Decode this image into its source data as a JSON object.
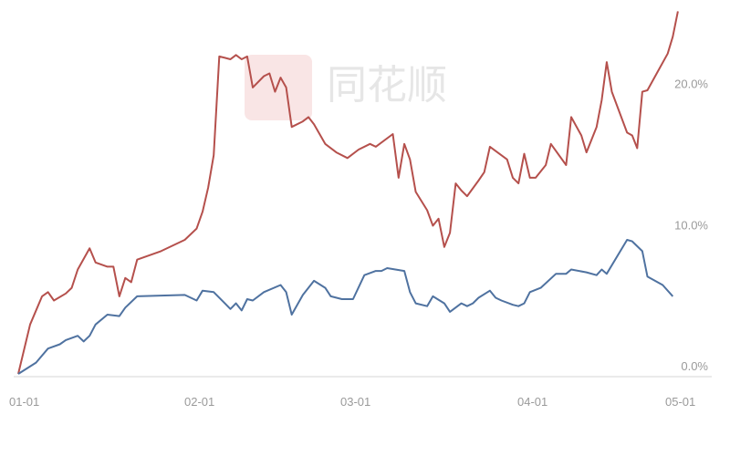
{
  "watermark": {
    "text": "同花顺",
    "logo_color": "#f6d6d6"
  },
  "chart_data": {
    "type": "line",
    "title": "",
    "xlabel": "",
    "ylabel": "",
    "x_ticks": [
      "01-01",
      "02-01",
      "03-01",
      "04-01",
      "05-01"
    ],
    "y_ticks": [
      "0.0%",
      "10.0%",
      "20.0%"
    ],
    "xlim": [
      "01-01",
      "05-01"
    ],
    "ylim": [
      0,
      26.5
    ],
    "grid": false,
    "legend": "none",
    "series": [
      {
        "color": "#b5504c",
        "points": [
          [
            "01-01",
            0.0
          ],
          [
            "01-03",
            3.5
          ],
          [
            "01-05",
            5.5
          ],
          [
            "01-06",
            5.8
          ],
          [
            "01-07",
            5.2
          ],
          [
            "01-09",
            5.7
          ],
          [
            "01-10",
            6.1
          ],
          [
            "01-11",
            7.4
          ],
          [
            "01-13",
            8.9
          ],
          [
            "01-14",
            7.9
          ],
          [
            "01-16",
            7.6
          ],
          [
            "01-17",
            7.6
          ],
          [
            "01-18",
            5.5
          ],
          [
            "01-19",
            6.8
          ],
          [
            "01-20",
            6.5
          ],
          [
            "01-21",
            8.1
          ],
          [
            "01-25",
            8.7
          ],
          [
            "01-29",
            9.5
          ],
          [
            "01-31",
            10.3
          ],
          [
            "02-01",
            11.5
          ],
          [
            "02-02",
            13.2
          ],
          [
            "02-03",
            15.5
          ],
          [
            "02-04",
            22.5
          ],
          [
            "02-05",
            22.4
          ],
          [
            "02-06",
            22.3
          ],
          [
            "02-07",
            22.6
          ],
          [
            "02-08",
            22.3
          ],
          [
            "02-09",
            22.5
          ],
          [
            "02-10",
            20.3
          ],
          [
            "02-12",
            21.1
          ],
          [
            "02-13",
            21.3
          ],
          [
            "02-14",
            20.0
          ],
          [
            "02-15",
            21.0
          ],
          [
            "02-16",
            20.3
          ],
          [
            "02-17",
            17.5
          ],
          [
            "02-19",
            17.9
          ],
          [
            "02-20",
            18.2
          ],
          [
            "02-21",
            17.7
          ],
          [
            "02-23",
            16.3
          ],
          [
            "02-25",
            15.7
          ],
          [
            "02-27",
            15.3
          ],
          [
            "03-01",
            15.9
          ],
          [
            "03-03",
            16.3
          ],
          [
            "03-04",
            16.1
          ],
          [
            "03-07",
            17.0
          ],
          [
            "03-08",
            13.9
          ],
          [
            "03-09",
            16.3
          ],
          [
            "03-10",
            15.2
          ],
          [
            "03-11",
            12.9
          ],
          [
            "03-13",
            11.6
          ],
          [
            "03-14",
            10.5
          ],
          [
            "03-15",
            11.0
          ],
          [
            "03-16",
            9.0
          ],
          [
            "03-17",
            10.0
          ],
          [
            "03-18",
            13.5
          ],
          [
            "03-19",
            13.0
          ],
          [
            "03-20",
            12.6
          ],
          [
            "03-22",
            13.7
          ],
          [
            "03-23",
            14.3
          ],
          [
            "03-24",
            16.1
          ],
          [
            "03-27",
            15.2
          ],
          [
            "03-28",
            13.9
          ],
          [
            "03-29",
            13.5
          ],
          [
            "03-30",
            15.6
          ],
          [
            "03-31",
            13.9
          ],
          [
            "04-01",
            13.9
          ],
          [
            "04-03",
            14.8
          ],
          [
            "04-04",
            16.3
          ],
          [
            "04-07",
            14.8
          ],
          [
            "04-08",
            18.2
          ],
          [
            "04-10",
            16.9
          ],
          [
            "04-11",
            15.7
          ],
          [
            "04-13",
            17.5
          ],
          [
            "04-14",
            19.4
          ],
          [
            "04-15",
            22.1
          ],
          [
            "04-16",
            20.0
          ],
          [
            "04-19",
            17.1
          ],
          [
            "04-20",
            16.9
          ],
          [
            "04-21",
            16.0
          ],
          [
            "04-22",
            20.0
          ],
          [
            "04-23",
            20.1
          ],
          [
            "04-25",
            21.4
          ],
          [
            "04-27",
            22.7
          ],
          [
            "04-28",
            23.9
          ],
          [
            "04-29",
            25.7
          ]
        ]
      },
      {
        "color": "#4f72a0",
        "points": [
          [
            "01-01",
            0.0
          ],
          [
            "01-04",
            0.8
          ],
          [
            "01-06",
            1.8
          ],
          [
            "01-08",
            2.1
          ],
          [
            "01-09",
            2.4
          ],
          [
            "01-11",
            2.7
          ],
          [
            "01-12",
            2.3
          ],
          [
            "01-13",
            2.7
          ],
          [
            "01-14",
            3.5
          ],
          [
            "01-16",
            4.2
          ],
          [
            "01-18",
            4.1
          ],
          [
            "01-19",
            4.7
          ],
          [
            "01-21",
            5.5
          ],
          [
            "01-29",
            5.6
          ],
          [
            "01-31",
            5.2
          ],
          [
            "02-01",
            5.9
          ],
          [
            "02-03",
            5.8
          ],
          [
            "02-05",
            5.0
          ],
          [
            "02-06",
            4.6
          ],
          [
            "02-07",
            5.0
          ],
          [
            "02-08",
            4.5
          ],
          [
            "02-09",
            5.3
          ],
          [
            "02-10",
            5.2
          ],
          [
            "02-12",
            5.8
          ],
          [
            "02-15",
            6.3
          ],
          [
            "02-16",
            5.8
          ],
          [
            "02-17",
            4.2
          ],
          [
            "02-19",
            5.6
          ],
          [
            "02-21",
            6.6
          ],
          [
            "02-23",
            6.1
          ],
          [
            "02-24",
            5.5
          ],
          [
            "02-26",
            5.3
          ],
          [
            "02-28",
            5.3
          ],
          [
            "03-02",
            7.0
          ],
          [
            "03-04",
            7.3
          ],
          [
            "03-05",
            7.3
          ],
          [
            "03-06",
            7.5
          ],
          [
            "03-09",
            7.3
          ],
          [
            "03-10",
            5.8
          ],
          [
            "03-11",
            5.0
          ],
          [
            "03-13",
            4.8
          ],
          [
            "03-14",
            5.5
          ],
          [
            "03-16",
            5.0
          ],
          [
            "03-17",
            4.4
          ],
          [
            "03-19",
            5.0
          ],
          [
            "03-20",
            4.8
          ],
          [
            "03-21",
            5.0
          ],
          [
            "03-22",
            5.4
          ],
          [
            "03-24",
            5.9
          ],
          [
            "03-25",
            5.4
          ],
          [
            "03-26",
            5.2
          ],
          [
            "03-28",
            4.9
          ],
          [
            "03-29",
            4.8
          ],
          [
            "03-30",
            5.0
          ],
          [
            "03-31",
            5.8
          ],
          [
            "04-02",
            6.1
          ],
          [
            "04-05",
            7.1
          ],
          [
            "04-07",
            7.1
          ],
          [
            "04-08",
            7.4
          ],
          [
            "04-11",
            7.2
          ],
          [
            "04-13",
            7.0
          ],
          [
            "04-14",
            7.4
          ],
          [
            "04-15",
            7.1
          ],
          [
            "04-19",
            9.5
          ],
          [
            "04-20",
            9.4
          ],
          [
            "04-22",
            8.7
          ],
          [
            "04-23",
            6.9
          ],
          [
            "04-26",
            6.3
          ],
          [
            "04-28",
            5.5
          ]
        ]
      }
    ]
  }
}
